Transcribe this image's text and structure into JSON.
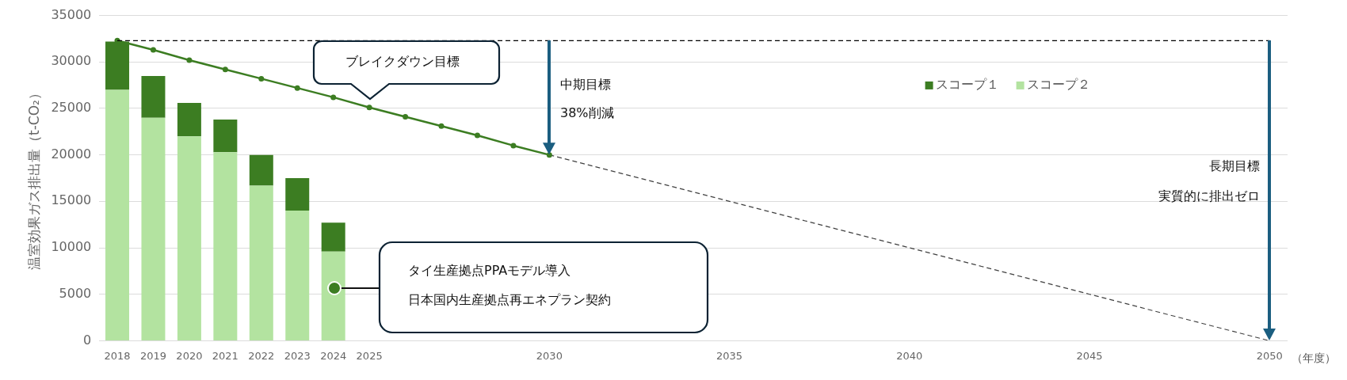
{
  "chart_data": {
    "type": "bar",
    "stacked": true,
    "ylabel": "温室効果ガス排出量（t-CO₂）",
    "xlabel": "（年度）",
    "categories": [
      "2018",
      "2019",
      "2020",
      "2021",
      "2022",
      "2023",
      "2024",
      "2025",
      null,
      null,
      null,
      null,
      "2030",
      null,
      null,
      null,
      null,
      "2035",
      null,
      null,
      null,
      null,
      "2040",
      null,
      null,
      null,
      null,
      "2045",
      null,
      null,
      null,
      null,
      "2050"
    ],
    "series": [
      {
        "name": "スコープ２",
        "color": "#b3e3a0",
        "values": [
          27000,
          24000,
          22000,
          20300,
          16700,
          14000,
          9600,
          null,
          null,
          null,
          null,
          null,
          null,
          null,
          null,
          null,
          null,
          null,
          null,
          null,
          null,
          null,
          null,
          null,
          null,
          null,
          null,
          null,
          null,
          null,
          null,
          null,
          null
        ]
      },
      {
        "name": "スコープ１",
        "color": "#3c7d22",
        "values": [
          5200,
          4500,
          3600,
          3500,
          3300,
          3500,
          3100,
          null,
          null,
          null,
          null,
          null,
          null,
          null,
          null,
          null,
          null,
          null,
          null,
          null,
          null,
          null,
          null,
          null,
          null,
          null,
          null,
          null,
          null,
          null,
          null,
          null,
          null
        ]
      },
      {
        "type": "line",
        "color": "#3c7d22",
        "marker": "circle",
        "line_style": "solid",
        "values": [
          32300,
          31300,
          30200,
          29200,
          28200,
          27200,
          26200,
          25100,
          24100,
          23100,
          22100,
          21000,
          20000,
          null,
          null,
          null,
          null,
          null,
          null,
          null,
          null,
          null,
          null,
          null,
          null,
          null,
          null,
          null,
          null,
          null,
          null,
          null,
          null
        ]
      },
      {
        "type": "line",
        "color": "#404040",
        "marker": "none",
        "line_style": "dashed",
        "values": [
          null,
          null,
          null,
          null,
          null,
          null,
          null,
          null,
          null,
          null,
          null,
          null,
          20000,
          19000,
          18000,
          17000,
          16000,
          15000,
          14000,
          13000,
          12000,
          11000,
          10000,
          9000,
          8000,
          7000,
          6000,
          5000,
          4000,
          3000,
          2000,
          1000,
          0
        ]
      }
    ],
    "ylim": [
      0,
      35000
    ],
    "yticks": [
      0,
      5000,
      10000,
      15000,
      20000,
      25000,
      30000,
      35000
    ],
    "grid": "y",
    "legend": "top",
    "ref_lines": [
      {
        "axis": "y",
        "value": 32300,
        "color": "#000000",
        "line_style": "dashed"
      }
    ],
    "annotations": [
      "ブレイクダウン目標",
      "中期目標",
      "38%削減",
      "長期目標",
      "実質的に排出ゼロ",
      "タイ生産拠点PPAモデル導入",
      "日本国内生産拠点再エネプラン契約"
    ]
  }
}
